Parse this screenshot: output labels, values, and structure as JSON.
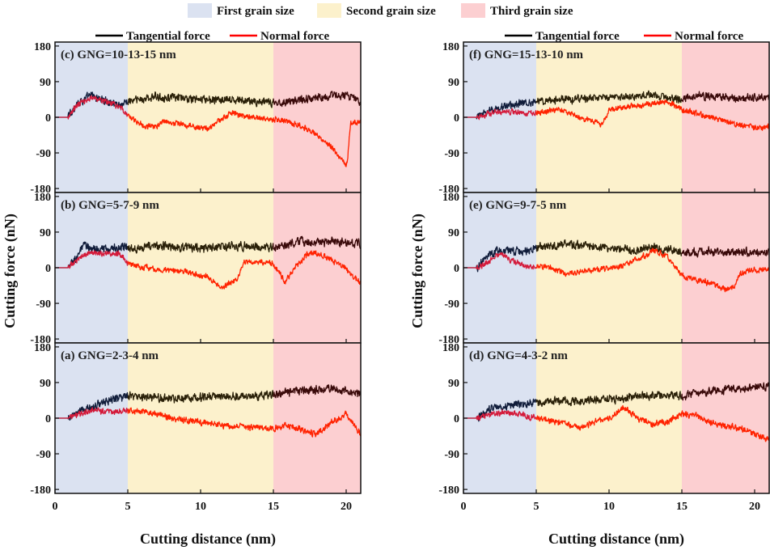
{
  "region_legend": [
    {
      "label": "First grain size",
      "color": "#dbe2f1"
    },
    {
      "label": "Second grain size",
      "color": "#fcf1cc"
    },
    {
      "label": "Third grain size",
      "color": "#fccfd1"
    }
  ],
  "series_legend": [
    {
      "label": "Tangential force",
      "color": "#000000"
    },
    {
      "label": "Normal force",
      "color": "#ff0000"
    }
  ],
  "colors": {
    "tangential": "#2a2008",
    "tangential_first": "#101c3a",
    "tangential_third": "#3a0a0a",
    "normal": "#ff2200",
    "normal_first": "#d41a3a"
  },
  "chart_data": [
    {
      "type": "line",
      "title": "(c) GNG=10-13-15 nm",
      "xlabel": "Cutting distance (nm)",
      "ylabel": "Cutting force (nN)",
      "xlim": [
        0,
        21
      ],
      "ylim": [
        -190,
        190
      ],
      "xticks": [
        "0",
        "5",
        "10",
        "15",
        "20"
      ],
      "yticks": [
        "180",
        "90",
        "0",
        "-90",
        "-180"
      ],
      "region_bounds": [
        0,
        5,
        15,
        21
      ],
      "series": [
        {
          "name": "Tangential force",
          "x": [
            0,
            0.9,
            1.5,
            2.5,
            3.5,
            4.5,
            5,
            7,
            10,
            13,
            15,
            17,
            19,
            20,
            21
          ],
          "values": [
            0,
            0,
            35,
            55,
            40,
            32,
            40,
            52,
            45,
            42,
            35,
            45,
            55,
            55,
            40
          ],
          "noise": 13
        },
        {
          "name": "Normal force",
          "x": [
            0,
            0.9,
            1.5,
            2.5,
            3.5,
            4.5,
            5,
            6,
            6.8,
            7.5,
            9,
            10.5,
            12,
            13.5,
            15,
            16,
            17,
            18,
            19,
            20,
            20.1,
            20.3,
            21
          ],
          "values": [
            0,
            0,
            30,
            50,
            40,
            25,
            5,
            -20,
            -25,
            -10,
            -20,
            -30,
            10,
            0,
            -5,
            -10,
            -25,
            -45,
            -75,
            -120,
            -100,
            -15,
            -10
          ],
          "noise": 9
        }
      ]
    },
    {
      "type": "line",
      "title": "(b) GNG=5-7-9 nm",
      "xlabel": "Cutting distance (nm)",
      "ylabel": "Cutting force (nN)",
      "xlim": [
        0,
        21
      ],
      "ylim": [
        -190,
        190
      ],
      "xticks": [
        "0",
        "5",
        "10",
        "15",
        "20"
      ],
      "yticks": [
        "180",
        "90",
        "0",
        "-90",
        "-180"
      ],
      "region_bounds": [
        0,
        5,
        15,
        21
      ],
      "series": [
        {
          "name": "Tangential force",
          "x": [
            0,
            0.9,
            1.5,
            2,
            3,
            4,
            5,
            7,
            10,
            13,
            15,
            17,
            19,
            21
          ],
          "values": [
            0,
            0,
            30,
            55,
            45,
            50,
            50,
            55,
            50,
            55,
            50,
            65,
            65,
            60
          ],
          "noise": 14
        },
        {
          "name": "Normal force",
          "x": [
            0,
            0.9,
            1.5,
            2.5,
            3.5,
            4.5,
            5,
            7,
            9,
            10.5,
            11.5,
            12.5,
            13,
            14,
            15,
            15.8,
            16.5,
            17.5,
            18.5,
            20,
            21
          ],
          "values": [
            0,
            0,
            20,
            40,
            35,
            35,
            10,
            -5,
            -10,
            -25,
            -50,
            -30,
            15,
            15,
            10,
            -35,
            0,
            40,
            30,
            0,
            -40
          ],
          "noise": 9
        }
      ]
    },
    {
      "type": "line",
      "title": "(a) GNG=2-3-4 nm",
      "xlabel": "Cutting distance (nm)",
      "ylabel": "Cutting force (nN)",
      "xlim": [
        0,
        21
      ],
      "ylim": [
        -190,
        190
      ],
      "xticks": [
        "0",
        "5",
        "10",
        "15",
        "20"
      ],
      "yticks": [
        "180",
        "90",
        "0",
        "-90",
        "-180"
      ],
      "region_bounds": [
        0,
        5,
        15,
        21
      ],
      "series": [
        {
          "name": "Tangential force",
          "x": [
            0,
            0.9,
            2,
            3,
            4,
            5,
            8,
            11,
            14,
            15,
            17,
            19,
            21
          ],
          "values": [
            0,
            0,
            20,
            35,
            50,
            55,
            50,
            55,
            55,
            60,
            70,
            75,
            60
          ],
          "noise": 13
        },
        {
          "name": "Normal force",
          "x": [
            0,
            0.9,
            2,
            3,
            4,
            5,
            6,
            8,
            10,
            12,
            14,
            15,
            16,
            17,
            18,
            19,
            20,
            21
          ],
          "values": [
            0,
            0,
            15,
            20,
            15,
            20,
            20,
            0,
            -10,
            -20,
            -25,
            -25,
            -20,
            -30,
            -40,
            -10,
            10,
            -40
          ],
          "noise": 10
        }
      ]
    },
    {
      "type": "line",
      "title": "(f) GNG=15-13-10 nm",
      "xlabel": "Cutting distance (nm)",
      "ylabel": "Cutting force (nN)",
      "xlim": [
        0,
        21
      ],
      "ylim": [
        -190,
        190
      ],
      "xticks": [
        "0",
        "5",
        "10",
        "15",
        "20"
      ],
      "yticks": [
        "180",
        "90",
        "0",
        "-90",
        "-180"
      ],
      "region_bounds": [
        0,
        5,
        15,
        21
      ],
      "series": [
        {
          "name": "Tangential force",
          "x": [
            0,
            0.9,
            2,
            3,
            4,
            5,
            7,
            10,
            13,
            15,
            16,
            18,
            21
          ],
          "values": [
            0,
            0,
            20,
            30,
            35,
            40,
            45,
            50,
            55,
            45,
            55,
            50,
            50
          ],
          "noise": 12
        },
        {
          "name": "Normal force",
          "x": [
            0,
            0.9,
            2,
            3,
            4,
            5,
            6,
            7,
            8,
            9,
            9.5,
            10,
            11,
            12,
            13,
            14,
            15,
            16,
            17,
            18,
            19,
            20,
            21
          ],
          "values": [
            0,
            0,
            10,
            15,
            10,
            10,
            20,
            15,
            0,
            -10,
            -20,
            20,
            25,
            30,
            35,
            40,
            20,
            10,
            0,
            -10,
            -20,
            -25,
            -25
          ],
          "noise": 9
        }
      ]
    },
    {
      "type": "line",
      "title": "(e) GNG=9-7-5 nm",
      "xlabel": "Cutting distance (nm)",
      "ylabel": "Cutting force (nN)",
      "xlim": [
        0,
        21
      ],
      "ylim": [
        -190,
        190
      ],
      "xticks": [
        "0",
        "5",
        "10",
        "15",
        "20"
      ],
      "yticks": [
        "180",
        "90",
        "0",
        "-90",
        "-180"
      ],
      "region_bounds": [
        0,
        5,
        15,
        21
      ],
      "series": [
        {
          "name": "Tangential force",
          "x": [
            0,
            0.9,
            1.5,
            2.5,
            3.5,
            4.5,
            5,
            7,
            10,
            12,
            13,
            15,
            17,
            21
          ],
          "values": [
            0,
            0,
            25,
            45,
            40,
            45,
            50,
            60,
            50,
            45,
            50,
            40,
            40,
            40
          ],
          "noise": 13
        },
        {
          "name": "Normal force",
          "x": [
            0,
            0.9,
            1.5,
            2.5,
            3.5,
            4.5,
            5,
            6,
            7,
            9,
            11,
            12.5,
            13,
            14,
            15,
            16,
            17,
            18,
            18.6,
            19,
            20,
            21
          ],
          "values": [
            0,
            0,
            10,
            35,
            15,
            0,
            5,
            0,
            -15,
            -5,
            5,
            30,
            45,
            30,
            -20,
            -30,
            -40,
            -55,
            -50,
            -15,
            -5,
            -5
          ],
          "noise": 9
        }
      ]
    },
    {
      "type": "line",
      "title": "(d) GNG=4-3-2 nm",
      "xlabel": "Cutting distance (nm)",
      "ylabel": "Cutting force (nN)",
      "xlim": [
        0,
        21
      ],
      "ylim": [
        -190,
        190
      ],
      "xticks": [
        "0",
        "5",
        "10",
        "15",
        "20"
      ],
      "yticks": [
        "180",
        "90",
        "0",
        "-90",
        "-180"
      ],
      "region_bounds": [
        0,
        5,
        15,
        21
      ],
      "series": [
        {
          "name": "Tangential force",
          "x": [
            0,
            0.9,
            2,
            3,
            4,
            5,
            8,
            11,
            13,
            15,
            17,
            19,
            21
          ],
          "values": [
            0,
            0,
            25,
            30,
            35,
            40,
            45,
            50,
            60,
            55,
            70,
            75,
            80
          ],
          "noise": 13
        },
        {
          "name": "Normal force",
          "x": [
            0,
            0.9,
            2,
            3,
            4,
            5,
            6,
            8,
            9,
            10,
            11,
            12,
            13,
            14,
            15,
            16,
            17,
            18,
            19,
            20,
            21
          ],
          "values": [
            0,
            0,
            10,
            15,
            10,
            0,
            -5,
            -25,
            -10,
            0,
            25,
            0,
            -15,
            -10,
            10,
            5,
            -10,
            -20,
            -25,
            -40,
            -55
          ],
          "noise": 10
        }
      ]
    }
  ]
}
